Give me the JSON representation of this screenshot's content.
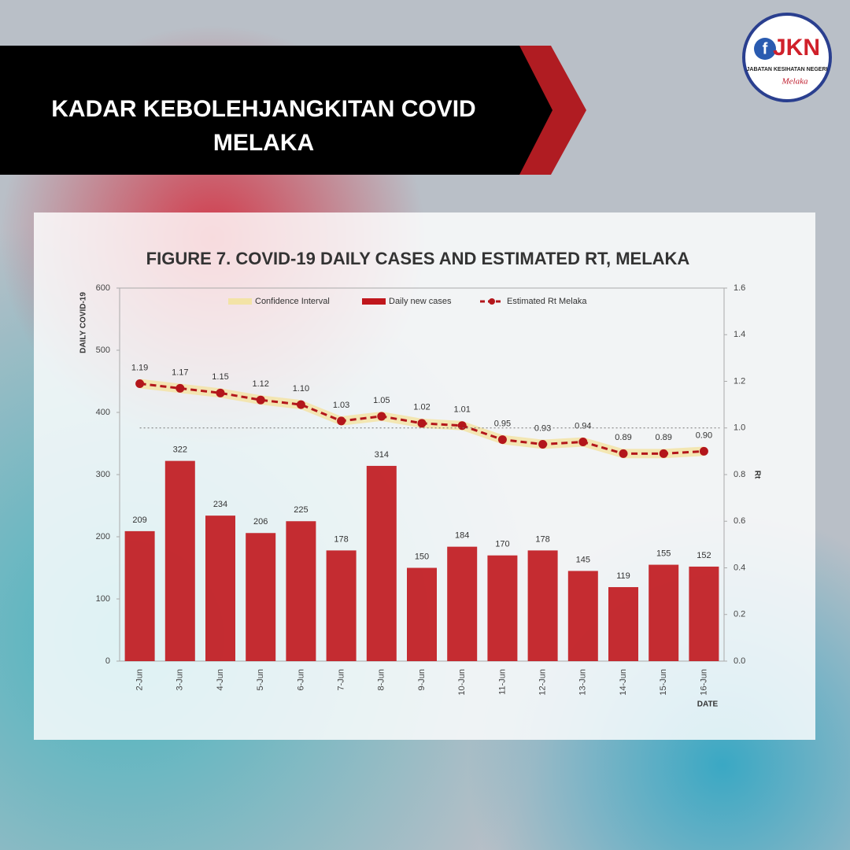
{
  "header": {
    "title_lines": [
      "KADAR KEBOLEHJANGKITAN COVID",
      "MELAKA"
    ]
  },
  "logo": {
    "mark": "JKN",
    "letter": "f",
    "name": "JABATAN KESIHATAN NEGERI",
    "state": "Melaka"
  },
  "chart_data": {
    "type": "bar",
    "title": "FIGURE 7. COVID-19 DAILY CASES AND ESTIMATED RT, MELAKA",
    "y_label": "DAILY COVID-19",
    "y2_label": "Rt",
    "x_label": "DATE",
    "categories": [
      "2-Jun",
      "3-Jun",
      "4-Jun",
      "5-Jun",
      "6-Jun",
      "7-Jun",
      "8-Jun",
      "9-Jun",
      "10-Jun",
      "11-Jun",
      "12-Jun",
      "13-Jun",
      "14-Jun",
      "15-Jun",
      "16-Jun"
    ],
    "ylim": [
      0,
      600
    ],
    "yticks": [
      0,
      100,
      200,
      300,
      400,
      500,
      600
    ],
    "y2lim": [
      0,
      1.6
    ],
    "y2ticks": [
      {
        "value": 0,
        "label": "0.0"
      },
      {
        "value": 0.2,
        "label": "0.2"
      },
      {
        "value": 0.4,
        "label": "0.4"
      },
      {
        "value": 0.6,
        "label": "0.6"
      },
      {
        "value": 0.8,
        "label": "0.8"
      },
      {
        "value": 1,
        "label": "1.0"
      },
      {
        "value": 1.2,
        "label": "1.2"
      },
      {
        "value": 1.4,
        "label": "1.4"
      },
      {
        "value": 1.6,
        "label": "1.6"
      }
    ],
    "reference_line": {
      "axis": "y2",
      "value": 1,
      "color": "#777777"
    },
    "series": [
      {
        "name": "Daily new cases",
        "type": "bar",
        "color": "#c0161c",
        "values": [
          209,
          322,
          234,
          206,
          225,
          178,
          314,
          150,
          184,
          170,
          178,
          145,
          119,
          155,
          152
        ]
      },
      {
        "name": "Estimated Rt Melaka",
        "type": "line",
        "axis": "y2",
        "color": "#b3161b",
        "values": [
          1.19,
          1.17,
          1.15,
          1.12,
          1.1,
          1.03,
          1.05,
          1.02,
          1.01,
          0.95,
          0.93,
          0.94,
          0.89,
          0.89,
          0.9
        ],
        "value_labels": [
          "1.19",
          "1.17",
          "1.15",
          "1.12",
          "1.10",
          "1.03",
          "1.05",
          "1.02",
          "1.01",
          "0.95",
          "0.93",
          "0.94",
          "0.89",
          "0.89",
          "0.90"
        ]
      },
      {
        "name": "Confidence Interval",
        "type": "band",
        "axis": "y2",
        "color": "#f3e3a6",
        "lower": [
          1.17,
          1.15,
          1.13,
          1.1,
          1.08,
          1.01,
          1.03,
          1.0,
          0.99,
          0.93,
          0.91,
          0.92,
          0.87,
          0.87,
          0.88
        ],
        "upper": [
          1.21,
          1.19,
          1.17,
          1.14,
          1.12,
          1.05,
          1.07,
          1.04,
          1.03,
          0.97,
          0.95,
          0.96,
          0.91,
          0.91,
          0.92
        ]
      }
    ],
    "legend_order": [
      2,
      0,
      1
    ]
  }
}
